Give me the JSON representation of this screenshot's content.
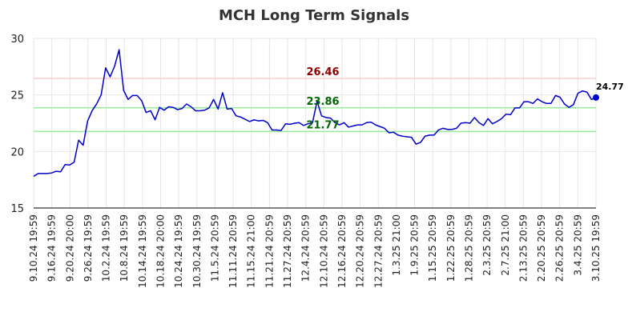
{
  "chart_data": {
    "type": "line",
    "title": "MCH Long Term Signals",
    "xlabel": "",
    "ylabel": "",
    "ylim": [
      15,
      30
    ],
    "yticks": [
      15,
      20,
      25,
      30
    ],
    "grid": true,
    "xtick_labels": [
      "9.10.24 19:59",
      "9.16.24 19:59",
      "9.20.24 20:00",
      "9.26.24 19:59",
      "10.2.24 19:59",
      "10.8.24 19:59",
      "10.14.24 19:59",
      "10.18.24 20:00",
      "10.24.24 19:59",
      "10.30.24 19:59",
      "11.5.24 20:59",
      "11.11.24 20:59",
      "11.15.24 21:00",
      "11.21.24 20:59",
      "11.27.24 20:59",
      "12.4.24 20:59",
      "12.10.24 20:59",
      "12.16.24 20:59",
      "12.20.24 20:59",
      "12.27.24 20:59",
      "1.3.25 21:00",
      "1.9.25 20:59",
      "1.15.25 20:59",
      "1.22.25 20:59",
      "1.28.25 20:59",
      "2.3.25 20:59",
      "2.7.25 21:00",
      "2.13.25 20:59",
      "2.20.25 20:59",
      "2.26.25 20:59",
      "3.4.25 20:59",
      "3.10.25 19:59"
    ],
    "series": [
      {
        "color": "#0000cc",
        "values": [
          17.8,
          18.05,
          18.05,
          18.05,
          18.1,
          18.25,
          18.2,
          18.85,
          18.8,
          19.05,
          21.0,
          20.55,
          22.7,
          23.6,
          24.2,
          25.0,
          27.4,
          26.6,
          27.55,
          29.0,
          25.4,
          24.6,
          24.95,
          24.95,
          24.5,
          23.45,
          23.6,
          22.8,
          23.9,
          23.65,
          23.95,
          23.9,
          23.7,
          23.8,
          24.2,
          23.95,
          23.6,
          23.6,
          23.65,
          23.85,
          24.6,
          23.75,
          25.2,
          23.75,
          23.8,
          23.15,
          23.05,
          22.85,
          22.65,
          22.8,
          22.7,
          22.75,
          22.55,
          21.9,
          21.9,
          21.85,
          22.45,
          22.4,
          22.5,
          22.55,
          22.3,
          22.45,
          22.55,
          24.45,
          23.15,
          23.0,
          22.95,
          22.55,
          22.35,
          22.55,
          22.15,
          22.25,
          22.35,
          22.35,
          22.55,
          22.6,
          22.35,
          22.2,
          22.05,
          21.65,
          21.7,
          21.45,
          21.35,
          21.3,
          21.25,
          20.65,
          20.8,
          21.35,
          21.45,
          21.45,
          21.9,
          22.05,
          21.95,
          21.95,
          22.05,
          22.5,
          22.55,
          22.5,
          23.0,
          22.55,
          22.3,
          22.9,
          22.45,
          22.65,
          22.9,
          23.3,
          23.25,
          23.85,
          23.85,
          24.4,
          24.4,
          24.25,
          24.65,
          24.4,
          24.25,
          24.25,
          24.95,
          24.8,
          24.2,
          23.9,
          24.15,
          25.15,
          25.35,
          25.25,
          24.6,
          24.77
        ]
      }
    ],
    "hlines": [
      {
        "value": 26.46,
        "label": "26.46",
        "line_color": "#ffcccc",
        "label_color": "#8b0000"
      },
      {
        "value": 23.86,
        "label": "23.86",
        "line_color": "#99ee99",
        "label_color": "#006400"
      },
      {
        "value": 21.77,
        "label": "21.77",
        "line_color": "#99ee99",
        "label_color": "#006400"
      }
    ],
    "last_value": {
      "value": 24.77,
      "label": "24.77",
      "color": "#0000cc"
    }
  }
}
